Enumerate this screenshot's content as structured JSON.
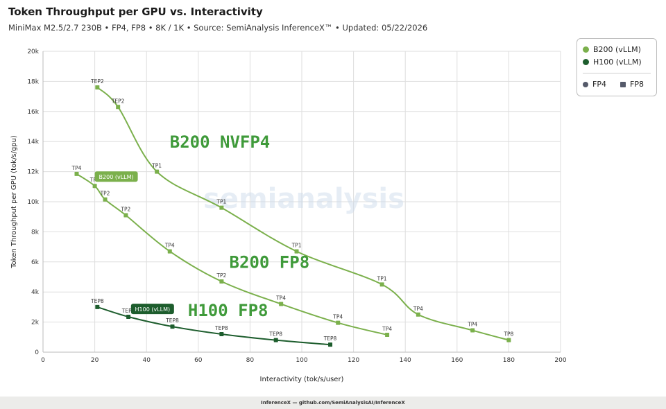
{
  "header": {
    "title": "Token Throughput per GPU vs. Interactivity",
    "subtitle": "MiniMax M2.5/2.7 230B • FP4, FP8 • 8K / 1K • Source: SemiAnalysis InferenceX™ • Updated: 05/22/2026"
  },
  "footer": {
    "text": "InferenceX — github.com/SemiAnalysisAI/InferenceX"
  },
  "legend": {
    "items": [
      {
        "label": "B200 (vLLM)",
        "color": "#6aa742"
      },
      {
        "label": "H100 (vLLM)",
        "color": "#1d5d2d"
      }
    ],
    "shapes": [
      {
        "label": "FP4",
        "shape": "circle"
      },
      {
        "label": "FP8",
        "shape": "square"
      }
    ]
  },
  "watermark": "semianalysis",
  "chart_data": {
    "type": "line",
    "xlabel": "Interactivity (tok/s/user)",
    "ylabel": "Token Throughput per GPU (tok/s/gpu)",
    "xlim": [
      0,
      200
    ],
    "ylim": [
      0,
      20000
    ],
    "xticks": [
      0,
      20,
      40,
      60,
      80,
      100,
      120,
      140,
      160,
      180,
      200
    ],
    "yticks": [
      0,
      2000,
      4000,
      6000,
      8000,
      10000,
      12000,
      14000,
      16000,
      18000,
      20000
    ],
    "ytick_labels": [
      "0",
      "2k",
      "4k",
      "6k",
      "8k",
      "10k",
      "12k",
      "14k",
      "16k",
      "18k",
      "20k"
    ],
    "grid": true,
    "legend_position": "top-right",
    "series": [
      {
        "name": "B200 (vLLM)",
        "precision": "FP4",
        "color": "#7bb04c",
        "points": [
          {
            "x": 21,
            "y": 17600,
            "label": "TEP2"
          },
          {
            "x": 29,
            "y": 16300,
            "label": "TEP2"
          },
          {
            "x": 44,
            "y": 12000,
            "label": "TP1"
          },
          {
            "x": 69,
            "y": 9600,
            "label": "TP1"
          },
          {
            "x": 98,
            "y": 6700,
            "label": "TP1"
          },
          {
            "x": 131,
            "y": 4500,
            "label": "TP1"
          },
          {
            "x": 145,
            "y": 2500,
            "label": "TP4"
          },
          {
            "x": 166,
            "y": 1450,
            "label": "TP4"
          },
          {
            "x": 180,
            "y": 800,
            "label": "TP8"
          }
        ]
      },
      {
        "name": "B200 (vLLM)",
        "precision": "FP8",
        "color": "#7bb04c",
        "points": [
          {
            "x": 13,
            "y": 11850,
            "label": "TP4"
          },
          {
            "x": 20,
            "y": 11050,
            "label": "TP4"
          },
          {
            "x": 24,
            "y": 10150,
            "label": "TP2"
          },
          {
            "x": 32,
            "y": 9100,
            "label": "TP2"
          },
          {
            "x": 49,
            "y": 6700,
            "label": "TP4"
          },
          {
            "x": 69,
            "y": 4700,
            "label": "TP2"
          },
          {
            "x": 92,
            "y": 3200,
            "label": "TP4"
          },
          {
            "x": 114,
            "y": 1950,
            "label": "TP4"
          },
          {
            "x": 133,
            "y": 1150,
            "label": "TP4"
          }
        ]
      },
      {
        "name": "H100 (vLLM)",
        "precision": "FP8",
        "color": "#1d5d2d",
        "points": [
          {
            "x": 21,
            "y": 3000,
            "label": "TEP8"
          },
          {
            "x": 33,
            "y": 2350,
            "label": "TEP8"
          },
          {
            "x": 50,
            "y": 1700,
            "label": "TEP8"
          },
          {
            "x": 69,
            "y": 1200,
            "label": "TEP8"
          },
          {
            "x": 90,
            "y": 800,
            "label": "TEP8"
          },
          {
            "x": 111,
            "y": 500,
            "label": "TEP8"
          }
        ]
      }
    ],
    "annotations": [
      {
        "text": "B200 NVFP4",
        "x": 49,
        "y": 13600,
        "color": "#3f9a3a"
      },
      {
        "text": "B200 FP8",
        "x": 72,
        "y": 5600,
        "color": "#3f9a3a"
      },
      {
        "text": "H100 FP8",
        "x": 56,
        "y": 2400,
        "color": "#3f9a3a"
      }
    ],
    "tooltips": [
      {
        "text": "B200 (vLLM)",
        "x": 20,
        "y": 11650,
        "color": "#7bb04c"
      },
      {
        "text": "H100 (vLLM)",
        "x": 34,
        "y": 2850,
        "color": "#1d5d2d"
      }
    ]
  }
}
